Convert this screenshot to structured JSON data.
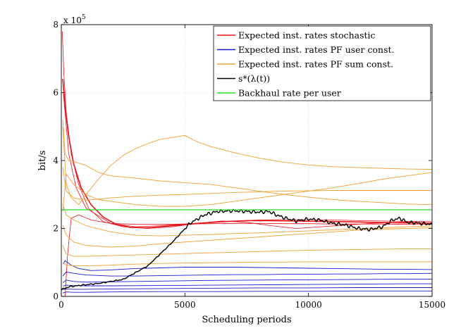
{
  "chart_data": {
    "type": "line",
    "title": "",
    "xlabel": "Scheduling periods",
    "ylabel": "bit/s",
    "xlim": [
      0,
      15000
    ],
    "ylim": [
      0,
      800000
    ],
    "y_exponent_label": "x 10",
    "y_exponent_power": "5",
    "x_ticks": [
      0,
      5000,
      10000,
      15000
    ],
    "x_tick_labels": [
      "0",
      "5000",
      "10000",
      "15000"
    ],
    "y_ticks": [
      0,
      200000,
      400000,
      600000,
      800000
    ],
    "y_tick_labels": [
      "0",
      "2",
      "4",
      "6",
      "8"
    ],
    "grid": true,
    "legend_position": "top-right",
    "legend": [
      {
        "label": "Expected inst. rates stochastic",
        "color": "#e8141c"
      },
      {
        "label": "Expected inst. rates PF user const.",
        "color": "#1a1acc"
      },
      {
        "label": "Expected inst. rates PF sum const.",
        "color": "#f0a030"
      },
      {
        "label": "s*(λ(t))",
        "color": "#000000"
      },
      {
        "label": "Backhaul rate per user",
        "color": "#22dd22"
      }
    ],
    "series": [
      {
        "name": "Expected inst. rates stochastic",
        "color": "#e8141c",
        "width": 1.6,
        "x": [
          60,
          150,
          300,
          500,
          800,
          1200,
          1700,
          2200,
          2800,
          3500,
          4500,
          5500,
          6500,
          7500,
          8500,
          9500,
          10500,
          11500,
          12500,
          13500,
          14500,
          15000
        ],
        "y": [
          640000,
          560000,
          470000,
          390000,
          320000,
          270000,
          233000,
          213000,
          203000,
          202000,
          208000,
          215000,
          220000,
          223000,
          223000,
          222000,
          221000,
          220000,
          218000,
          217000,
          216000,
          215000
        ]
      },
      {
        "name": "Expected inst. rates stochastic",
        "color": "#e8141c",
        "width": 0.8,
        "x": [
          40,
          100,
          200,
          400,
          700,
          1100,
          1700,
          2500,
          3500,
          4500,
          5500,
          6500,
          7500,
          8500,
          9500,
          10500,
          11500,
          12500,
          13500,
          14500,
          15000
        ],
        "y": [
          780000,
          660000,
          540000,
          420000,
          330000,
          260000,
          220000,
          205000,
          200000,
          205000,
          215000,
          222000,
          218000,
          208000,
          200000,
          205000,
          210000,
          215000,
          218000,
          220000,
          220000
        ]
      },
      {
        "name": "Expected inst. rates stochastic",
        "color": "#e8141c",
        "width": 0.8,
        "x": [
          80,
          300,
          600,
          1000,
          2000,
          3000,
          4000,
          5000,
          6000,
          7000,
          8000,
          9000,
          10000,
          11000,
          12000,
          13000,
          14000,
          15000
        ],
        "y": [
          600000,
          420000,
          320000,
          260000,
          215000,
          205000,
          208000,
          213000,
          218000,
          222000,
          225000,
          226000,
          226000,
          225000,
          223000,
          222000,
          221000,
          220000
        ]
      },
      {
        "name": "Expected inst. rates stochastic",
        "color": "#e8141c",
        "width": 0.8,
        "x": [
          150,
          250,
          400,
          700,
          1200,
          2000,
          3000,
          4000,
          5000,
          6000,
          7000,
          8000,
          9000,
          10000,
          11000,
          12000,
          13000,
          14000,
          15000
        ],
        "y": [
          0,
          120000,
          230000,
          240000,
          225000,
          215000,
          212000,
          212000,
          213000,
          214000,
          215000,
          215000,
          214000,
          214000,
          213000,
          213000,
          213000,
          212000,
          212000
        ]
      },
      {
        "name": "Expected inst. rates PF user const.",
        "color": "#1a1acc",
        "width": 0.9,
        "x": [
          80,
          150,
          250,
          400,
          700,
          1200,
          2000,
          3000,
          4000,
          5000,
          6000,
          7000,
          8000,
          9000,
          10000,
          11000,
          12000,
          13000,
          14000,
          15000
        ],
        "y": [
          95000,
          105000,
          100000,
          92000,
          82000,
          76000,
          78000,
          82000,
          84000,
          86000,
          86000,
          86000,
          85000,
          84000,
          83000,
          82000,
          81000,
          80000,
          80000,
          79000
        ]
      },
      {
        "name": "Expected inst. rates PF user const.",
        "color": "#1a1acc",
        "width": 0.9,
        "x": [
          60,
          200,
          500,
          1000,
          2000,
          3000,
          4000,
          5000,
          6000,
          7000,
          8000,
          9000,
          10000,
          11000,
          12000,
          13000,
          14000,
          15000
        ],
        "y": [
          60000,
          72000,
          68000,
          63000,
          60000,
          60000,
          61000,
          62000,
          63000,
          64000,
          64000,
          65000,
          65000,
          66000,
          66000,
          67000,
          67000,
          68000
        ]
      },
      {
        "name": "Expected inst. rates PF user const.",
        "color": "#1a1acc",
        "width": 0.9,
        "x": [
          60,
          200,
          500,
          1000,
          2000,
          4000,
          6000,
          8000,
          10000,
          12000,
          14000,
          15000
        ],
        "y": [
          40000,
          48000,
          44000,
          42000,
          43000,
          45000,
          47000,
          48000,
          49000,
          50000,
          51000,
          51000
        ]
      },
      {
        "name": "Expected inst. rates PF user const.",
        "color": "#1a1acc",
        "width": 0.9,
        "x": [
          60,
          200,
          500,
          1000,
          2000,
          4000,
          6000,
          8000,
          10000,
          12000,
          14000,
          15000
        ],
        "y": [
          30000,
          33000,
          32000,
          31000,
          31000,
          32000,
          33000,
          34000,
          35000,
          36000,
          37000,
          37000
        ]
      },
      {
        "name": "Expected inst. rates PF user const.",
        "color": "#1a1acc",
        "width": 0.9,
        "x": [
          60,
          200,
          500,
          1000,
          2000,
          4000,
          6000,
          8000,
          10000,
          12000,
          14000,
          15000
        ],
        "y": [
          20000,
          22000,
          21000,
          21000,
          22000,
          23000,
          24000,
          25000,
          25000,
          26000,
          26000,
          26000
        ]
      },
      {
        "name": "Expected inst. rates PF user const.",
        "color": "#1a1acc",
        "width": 0.9,
        "x": [
          60,
          200,
          500,
          1000,
          2000,
          4000,
          6000,
          8000,
          10000,
          12000,
          14000,
          15000
        ],
        "y": [
          10000,
          13000,
          12000,
          12000,
          13000,
          14000,
          14000,
          15000,
          15000,
          16000,
          16000,
          16000
        ]
      },
      {
        "name": "Expected inst. rates PF sum const.",
        "color": "#f0a030",
        "width": 0.9,
        "x": [
          60,
          200,
          400,
          700,
          1000,
          1500,
          2000,
          2500,
          3000,
          3500,
          4000,
          4500,
          5000,
          5500,
          6000,
          7000,
          8000,
          9000,
          10000,
          11000,
          12000,
          13000,
          14000,
          15000
        ],
        "y": [
          500000,
          330000,
          290000,
          270000,
          300000,
          345000,
          385000,
          415000,
          435000,
          450000,
          462000,
          468000,
          474000,
          455000,
          442000,
          423000,
          407000,
          395000,
          387000,
          382000,
          379000,
          377000,
          375000,
          374000
        ]
      },
      {
        "name": "Expected inst. rates PF sum const.",
        "color": "#f0a030",
        "width": 0.9,
        "x": [
          60,
          150,
          300,
          600,
          1000,
          1500,
          2000,
          3000,
          4000,
          5000,
          6000,
          7000,
          8000,
          9000,
          10000,
          11000,
          12000,
          13000,
          14000,
          15000
        ],
        "y": [
          520000,
          420000,
          400000,
          395000,
          385000,
          365000,
          355000,
          348000,
          340000,
          335000,
          330000,
          320000,
          310000,
          300000,
          292000,
          285000,
          280000,
          276000,
          272000,
          270000
        ]
      },
      {
        "name": "Expected inst. rates PF sum const.",
        "color": "#f0a030",
        "width": 0.9,
        "x": [
          60,
          200,
          500,
          1000,
          2000,
          3000,
          4000,
          5000,
          6000,
          7000,
          8000,
          9000,
          10000,
          11000,
          12000,
          13000,
          14000,
          15000
        ],
        "y": [
          380000,
          310000,
          290000,
          283000,
          290000,
          295000,
          298000,
          300000,
          303000,
          306000,
          308000,
          310000,
          311000,
          312000,
          312000,
          312000,
          312000,
          312000
        ]
      },
      {
        "name": "Expected inst. rates PF sum const.",
        "color": "#f0a030",
        "width": 0.9,
        "x": [
          60,
          200,
          500,
          1000,
          1500,
          2000,
          2500,
          3000,
          4000,
          5000,
          6000,
          7000,
          8000,
          9000,
          10000,
          11000,
          12000,
          13000,
          14000,
          15000
        ],
        "y": [
          250000,
          360000,
          330000,
          300000,
          285000,
          280000,
          275000,
          270000,
          265000,
          265000,
          270000,
          280000,
          290000,
          300000,
          310000,
          320000,
          332000,
          345000,
          355000,
          365000
        ]
      },
      {
        "name": "Expected inst. rates PF sum const.",
        "color": "#f0a030",
        "width": 0.9,
        "x": [
          60,
          200,
          500,
          1000,
          2000,
          3000,
          4000,
          5000,
          6000,
          7000,
          8000,
          9000,
          10000,
          11000,
          12000,
          13000,
          14000,
          15000
        ],
        "y": [
          270000,
          240000,
          225000,
          208000,
          190000,
          180000,
          178000,
          180000,
          182000,
          185000,
          187000,
          190000,
          193000,
          196000,
          199000,
          202000,
          205000,
          207000
        ]
      },
      {
        "name": "Expected inst. rates PF sum const.",
        "color": "#f0a030",
        "width": 0.9,
        "x": [
          60,
          200,
          500,
          1000,
          2000,
          3000,
          4000,
          5000,
          6000,
          7000,
          8000,
          9000,
          10000,
          11000,
          12000,
          13000,
          14000,
          15000
        ],
        "y": [
          210000,
          180000,
          160000,
          150000,
          145000,
          148000,
          155000,
          160000,
          165000,
          170000,
          175000,
          180000,
          185000,
          190000,
          195000,
          198000,
          200000,
          202000
        ]
      },
      {
        "name": "Expected inst. rates PF sum const.",
        "color": "#f0a030",
        "width": 0.9,
        "x": [
          60,
          200,
          500,
          1000,
          2000,
          3000,
          4000,
          5000,
          6000,
          7000,
          8000,
          9000,
          10000,
          11000,
          12000,
          13000,
          14000,
          15000
        ],
        "y": [
          150000,
          125000,
          118000,
          118000,
          120000,
          122000,
          124000,
          126000,
          128000,
          130000,
          132000,
          134000,
          136000,
          137000,
          138000,
          139000,
          140000,
          140000
        ]
      },
      {
        "name": "Expected inst. rates PF sum const.",
        "color": "#f0a030",
        "width": 0.9,
        "x": [
          60,
          200,
          500,
          1000,
          2000,
          3000,
          4000,
          5000,
          6000,
          7000,
          8000,
          9000,
          10000,
          11000,
          12000,
          13000,
          14000,
          15000
        ],
        "y": [
          100000,
          92000,
          90000,
          90000,
          92000,
          95000,
          97000,
          98000,
          99000,
          100000,
          101000,
          101000,
          102000,
          102000,
          102000,
          102000,
          102000,
          102000
        ]
      },
      {
        "name": "s*(λ(t))",
        "color": "#000000",
        "width": 1.4,
        "x": [
          0,
          300,
          800,
          1500,
          2500,
          3500,
          4500,
          5200,
          5800,
          6300,
          7000,
          7500,
          8000,
          8400,
          8700,
          9000,
          9500,
          10000,
          10500,
          11000,
          11500,
          12000,
          12500,
          13000,
          13400,
          13700,
          14000,
          14500,
          15000
        ],
        "y": [
          20000,
          28000,
          33000,
          38000,
          50000,
          90000,
          160000,
          215000,
          240000,
          250000,
          252000,
          250000,
          248000,
          250000,
          240000,
          232000,
          222000,
          228000,
          224000,
          215000,
          210000,
          200000,
          197000,
          205000,
          225000,
          230000,
          218000,
          215000,
          212000
        ]
      },
      {
        "name": "Backhaul rate per user",
        "color": "#22dd22",
        "width": 1.3,
        "x": [
          0,
          15000
        ],
        "y": [
          255000,
          255000
        ]
      }
    ]
  }
}
